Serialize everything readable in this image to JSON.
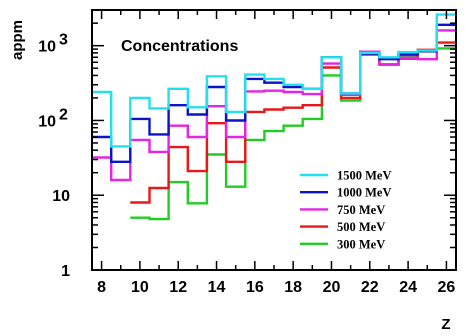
{
  "chart_data": {
    "type": "line",
    "step": true,
    "annotation": "Concentrations",
    "xlabel": "Z",
    "ylabel": "appm",
    "x_tick_labels": [
      "8",
      "10",
      "12",
      "14",
      "16",
      "18",
      "20",
      "22",
      "24",
      "26"
    ],
    "y_tick_labels": [
      {
        "value": 1,
        "label": "1"
      },
      {
        "value": 10,
        "label": "10"
      },
      {
        "value": 100,
        "label": "10",
        "exp": "2"
      },
      {
        "value": 1000,
        "label": "10",
        "exp": "3"
      }
    ],
    "xlim": [
      7.5,
      26.5
    ],
    "ylim": [
      1,
      3000
    ],
    "yscale": "log",
    "legend_position": "lower-right",
    "z": [
      8,
      9,
      10,
      11,
      12,
      13,
      14,
      15,
      16,
      17,
      18,
      19,
      20,
      21,
      22,
      23,
      24,
      25,
      26
    ],
    "series": [
      {
        "name": "1500 MeV",
        "color": "#22e0ee",
        "values": [
          240,
          45,
          200,
          145,
          265,
          150,
          390,
          130,
          410,
          360,
          300,
          265,
          700,
          230,
          800,
          700,
          820,
          860,
          2600
        ]
      },
      {
        "name": "1000 MeV",
        "color": "#0a14c8",
        "values": [
          60,
          28,
          105,
          65,
          160,
          120,
          280,
          100,
          360,
          320,
          280,
          265,
          700,
          230,
          780,
          660,
          760,
          840,
          1900
        ]
      },
      {
        "name": "750 MeV",
        "color": "#e624e6",
        "values": [
          32,
          16,
          55,
          38,
          85,
          60,
          155,
          60,
          245,
          250,
          240,
          225,
          575,
          220,
          830,
          560,
          690,
          660,
          1600
        ]
      },
      {
        "name": "500 MeV",
        "color": "#e81818",
        "values": [
          null,
          null,
          8,
          12.5,
          44,
          21,
          92,
          28,
          130,
          140,
          148,
          160,
          510,
          200,
          760,
          560,
          670,
          880,
          1100
        ]
      },
      {
        "name": "300 MeV",
        "color": "#22cc22",
        "values": [
          null,
          null,
          5,
          4.8,
          15,
          7.8,
          35,
          13,
          55,
          72,
          85,
          105,
          400,
          185,
          780,
          560,
          740,
          840,
          920
        ]
      }
    ]
  }
}
